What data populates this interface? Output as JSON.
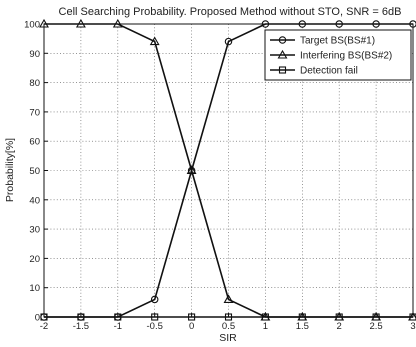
{
  "chart_data": {
    "type": "line",
    "title": "Cell Searching Probability. Proposed Method without STO, SNR = 6dB",
    "xlabel": "SIR",
    "ylabel": "Probability[%]",
    "xlim": [
      -2,
      3
    ],
    "ylim": [
      0,
      100
    ],
    "grid": true,
    "legend_position": "top-right",
    "x": [
      -2,
      -1.5,
      -1,
      -0.5,
      0,
      0.5,
      1,
      1.5,
      2,
      2.5,
      3
    ],
    "x_ticks": [
      -2,
      -1.5,
      -1,
      -0.5,
      0,
      0.5,
      1,
      1.5,
      2,
      2.5,
      3
    ],
    "x_tick_labels": [
      "-2",
      "-1.5",
      "-1",
      "-0.5",
      "0",
      "0.5",
      "1",
      "1.5",
      "2",
      "2.5",
      "3"
    ],
    "y_ticks": [
      0,
      10,
      20,
      30,
      40,
      50,
      60,
      70,
      80,
      90,
      100
    ],
    "y_tick_labels": [
      "0",
      "10",
      "20",
      "30",
      "40",
      "50",
      "60",
      "70",
      "80",
      "90",
      "100"
    ],
    "series": [
      {
        "name": "Target BS(BS#1)",
        "marker": "circle",
        "values": [
          0,
          0,
          0,
          6,
          50,
          94,
          100,
          100,
          100,
          100,
          100
        ]
      },
      {
        "name": "Interfering BS(BS#2)",
        "marker": "triangle",
        "values": [
          100,
          100,
          100,
          94,
          50,
          6,
          0,
          0,
          0,
          0,
          0
        ]
      },
      {
        "name": "Detection fail",
        "marker": "square",
        "values": [
          0,
          0,
          0,
          0,
          0,
          0,
          0,
          0,
          0,
          0,
          0
        ]
      }
    ]
  }
}
